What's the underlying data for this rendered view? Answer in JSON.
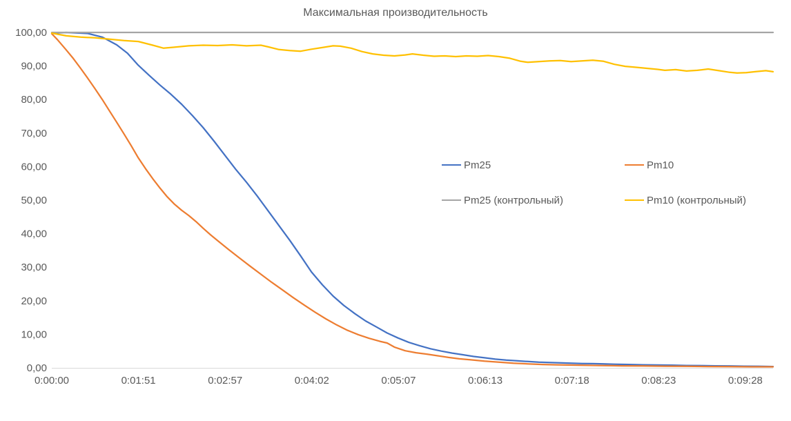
{
  "chart_data": {
    "type": "line",
    "title": "Максимальная производительность",
    "xlabel": "",
    "ylabel": "",
    "ylim": [
      0,
      100
    ],
    "grid": false,
    "legend_position": "inside-center-right",
    "axis_color": "#D9D9D9",
    "label_color": "#595959",
    "y_tick_labels": [
      "100,00",
      "90,00",
      "80,00",
      "70,00",
      "60,00",
      "50,00",
      "40,00",
      "30,00",
      "20,00",
      "10,00",
      "0,00"
    ],
    "x_tick_labels": [
      "0:00:00",
      "0:01:51",
      "0:02:57",
      "0:04:02",
      "0:05:07",
      "0:06:13",
      "0:07:18",
      "0:08:23",
      "0:09:28"
    ],
    "legend": [
      {
        "name": "Pm25",
        "color": "#4472C4"
      },
      {
        "name": "Pm10",
        "color": "#ED7D31"
      },
      {
        "name": "Pm25 (контрольный)",
        "color": "#A5A5A5"
      },
      {
        "name": "Pm10  (контрольный)",
        "color": "#FFC000"
      }
    ],
    "series": [
      {
        "name": "Pm25",
        "color": "#4472C4",
        "points": [
          [
            0,
            99.8
          ],
          [
            0.02,
            100
          ],
          [
            0.05,
            99.7
          ],
          [
            0.07,
            98.6
          ],
          [
            0.09,
            96.3
          ],
          [
            0.105,
            93.8
          ],
          [
            0.12,
            90.2
          ],
          [
            0.135,
            87.2
          ],
          [
            0.15,
            84.3
          ],
          [
            0.165,
            81.6
          ],
          [
            0.18,
            78.6
          ],
          [
            0.195,
            75.2
          ],
          [
            0.21,
            71.6
          ],
          [
            0.225,
            67.6
          ],
          [
            0.24,
            63.4
          ],
          [
            0.255,
            59.2
          ],
          [
            0.27,
            55.3
          ],
          [
            0.285,
            51.2
          ],
          [
            0.3,
            46.8
          ],
          [
            0.315,
            42.4
          ],
          [
            0.33,
            38.0
          ],
          [
            0.345,
            33.4
          ],
          [
            0.36,
            28.6
          ],
          [
            0.375,
            24.8
          ],
          [
            0.39,
            21.4
          ],
          [
            0.405,
            18.6
          ],
          [
            0.42,
            16.2
          ],
          [
            0.435,
            14.0
          ],
          [
            0.45,
            12.2
          ],
          [
            0.465,
            10.4
          ],
          [
            0.48,
            8.9
          ],
          [
            0.495,
            7.6
          ],
          [
            0.51,
            6.6
          ],
          [
            0.525,
            5.7
          ],
          [
            0.54,
            5.0
          ],
          [
            0.555,
            4.4
          ],
          [
            0.57,
            3.9
          ],
          [
            0.585,
            3.4
          ],
          [
            0.6,
            3.0
          ],
          [
            0.615,
            2.6
          ],
          [
            0.63,
            2.3
          ],
          [
            0.645,
            2.1
          ],
          [
            0.66,
            1.9
          ],
          [
            0.675,
            1.7
          ],
          [
            0.69,
            1.6
          ],
          [
            0.705,
            1.5
          ],
          [
            0.72,
            1.4
          ],
          [
            0.735,
            1.3
          ],
          [
            0.75,
            1.25
          ],
          [
            0.765,
            1.2
          ],
          [
            0.78,
            1.1
          ],
          [
            0.8,
            1.0
          ],
          [
            0.82,
            0.9
          ],
          [
            0.84,
            0.85
          ],
          [
            0.86,
            0.8
          ],
          [
            0.88,
            0.7
          ],
          [
            0.9,
            0.65
          ],
          [
            0.92,
            0.6
          ],
          [
            0.94,
            0.55
          ],
          [
            0.96,
            0.5
          ],
          [
            0.98,
            0.45
          ],
          [
            1,
            0.4
          ]
        ]
      },
      {
        "name": "Pm10",
        "color": "#ED7D31",
        "points": [
          [
            0,
            99.6
          ],
          [
            0.008,
            97.8
          ],
          [
            0.02,
            94.8
          ],
          [
            0.03,
            92.2
          ],
          [
            0.04,
            89.3
          ],
          [
            0.05,
            86.3
          ],
          [
            0.06,
            83.2
          ],
          [
            0.07,
            80.0
          ],
          [
            0.08,
            76.6
          ],
          [
            0.09,
            73.2
          ],
          [
            0.1,
            69.8
          ],
          [
            0.11,
            66.3
          ],
          [
            0.12,
            62.6
          ],
          [
            0.13,
            59.4
          ],
          [
            0.14,
            56.4
          ],
          [
            0.15,
            53.6
          ],
          [
            0.16,
            51.0
          ],
          [
            0.17,
            48.8
          ],
          [
            0.18,
            47.0
          ],
          [
            0.19,
            45.4
          ],
          [
            0.2,
            43.6
          ],
          [
            0.21,
            41.6
          ],
          [
            0.22,
            39.7
          ],
          [
            0.23,
            37.9
          ],
          [
            0.245,
            35.3
          ],
          [
            0.26,
            32.8
          ],
          [
            0.275,
            30.3
          ],
          [
            0.29,
            27.9
          ],
          [
            0.305,
            25.5
          ],
          [
            0.32,
            23.2
          ],
          [
            0.335,
            20.9
          ],
          [
            0.35,
            18.7
          ],
          [
            0.365,
            16.6
          ],
          [
            0.38,
            14.6
          ],
          [
            0.395,
            12.8
          ],
          [
            0.41,
            11.2
          ],
          [
            0.425,
            9.9
          ],
          [
            0.44,
            8.8
          ],
          [
            0.455,
            7.9
          ],
          [
            0.465,
            7.4
          ],
          [
            0.475,
            6.2
          ],
          [
            0.49,
            5.1
          ],
          [
            0.505,
            4.5
          ],
          [
            0.52,
            4.1
          ],
          [
            0.535,
            3.6
          ],
          [
            0.55,
            3.1
          ],
          [
            0.565,
            2.7
          ],
          [
            0.58,
            2.4
          ],
          [
            0.6,
            2.0
          ],
          [
            0.62,
            1.7
          ],
          [
            0.64,
            1.4
          ],
          [
            0.66,
            1.2
          ],
          [
            0.68,
            1.0
          ],
          [
            0.7,
            0.9
          ],
          [
            0.73,
            0.8
          ],
          [
            0.76,
            0.7
          ],
          [
            0.79,
            0.6
          ],
          [
            0.82,
            0.55
          ],
          [
            0.85,
            0.5
          ],
          [
            0.88,
            0.45
          ],
          [
            0.91,
            0.4
          ],
          [
            0.94,
            0.35
          ],
          [
            0.97,
            0.3
          ],
          [
            1,
            0.3
          ]
        ]
      },
      {
        "name": "Pm25 (контрольный)",
        "color": "#A5A5A5",
        "points": [
          [
            0,
            100
          ],
          [
            1,
            100
          ]
        ]
      },
      {
        "name": "Pm10  (контрольный)",
        "color": "#FFC000",
        "points": [
          [
            0,
            99.8
          ],
          [
            0.02,
            99.0
          ],
          [
            0.04,
            98.6
          ],
          [
            0.06,
            98.4
          ],
          [
            0.08,
            98.0
          ],
          [
            0.1,
            97.6
          ],
          [
            0.12,
            97.3
          ],
          [
            0.14,
            96.2
          ],
          [
            0.155,
            95.3
          ],
          [
            0.17,
            95.6
          ],
          [
            0.19,
            96.0
          ],
          [
            0.21,
            96.2
          ],
          [
            0.23,
            96.1
          ],
          [
            0.25,
            96.3
          ],
          [
            0.27,
            96.0
          ],
          [
            0.29,
            96.2
          ],
          [
            0.3,
            95.7
          ],
          [
            0.315,
            94.9
          ],
          [
            0.33,
            94.6
          ],
          [
            0.345,
            94.4
          ],
          [
            0.36,
            95.0
          ],
          [
            0.375,
            95.5
          ],
          [
            0.39,
            96.0
          ],
          [
            0.4,
            95.9
          ],
          [
            0.415,
            95.3
          ],
          [
            0.43,
            94.3
          ],
          [
            0.445,
            93.6
          ],
          [
            0.46,
            93.2
          ],
          [
            0.475,
            93.0
          ],
          [
            0.49,
            93.3
          ],
          [
            0.5,
            93.6
          ],
          [
            0.515,
            93.2
          ],
          [
            0.53,
            92.9
          ],
          [
            0.545,
            93.0
          ],
          [
            0.56,
            92.8
          ],
          [
            0.575,
            93.0
          ],
          [
            0.59,
            92.9
          ],
          [
            0.605,
            93.1
          ],
          [
            0.62,
            92.8
          ],
          [
            0.635,
            92.3
          ],
          [
            0.65,
            91.4
          ],
          [
            0.66,
            91.1
          ],
          [
            0.675,
            91.3
          ],
          [
            0.69,
            91.5
          ],
          [
            0.705,
            91.6
          ],
          [
            0.72,
            91.3
          ],
          [
            0.735,
            91.5
          ],
          [
            0.75,
            91.7
          ],
          [
            0.765,
            91.4
          ],
          [
            0.78,
            90.5
          ],
          [
            0.795,
            89.9
          ],
          [
            0.81,
            89.6
          ],
          [
            0.825,
            89.3
          ],
          [
            0.84,
            89.0
          ],
          [
            0.85,
            88.7
          ],
          [
            0.865,
            88.9
          ],
          [
            0.88,
            88.5
          ],
          [
            0.895,
            88.7
          ],
          [
            0.91,
            89.1
          ],
          [
            0.925,
            88.6
          ],
          [
            0.94,
            88.1
          ],
          [
            0.95,
            87.9
          ],
          [
            0.963,
            88.0
          ],
          [
            0.975,
            88.3
          ],
          [
            0.99,
            88.6
          ],
          [
            1,
            88.3
          ]
        ]
      }
    ]
  }
}
